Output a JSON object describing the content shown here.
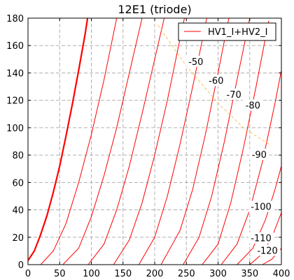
{
  "chart_data": {
    "type": "line",
    "title": "12E1 (triode)",
    "xlabel": "",
    "ylabel": "",
    "xlim": [
      0,
      400
    ],
    "ylim": [
      0,
      180
    ],
    "x_ticks": [
      0,
      50,
      100,
      150,
      200,
      250,
      300,
      350,
      400
    ],
    "y_ticks": [
      0,
      20,
      40,
      60,
      80,
      100,
      120,
      140,
      160,
      180
    ],
    "grid": true,
    "legend": {
      "position": "top-right",
      "entries": [
        "HV1_I+HV2_I"
      ]
    },
    "curve_color": "#ff0000",
    "load_line_color": "#f5c15a",
    "grid_color": "#b0b0b0",
    "series": [
      {
        "label": "",
        "bold": true,
        "points": [
          [
            0,
            3
          ],
          [
            10,
            10
          ],
          [
            20,
            22
          ],
          [
            30,
            36
          ],
          [
            40,
            53
          ],
          [
            50,
            72
          ],
          [
            60,
            94
          ],
          [
            70,
            117
          ],
          [
            80,
            142
          ],
          [
            90,
            168
          ],
          [
            94,
            180
          ]
        ]
      },
      {
        "label": "",
        "bold": false,
        "points": [
          [
            20,
            0
          ],
          [
            40,
            10
          ],
          [
            60,
            30
          ],
          [
            80,
            60
          ],
          [
            100,
            95
          ],
          [
            120,
            135
          ],
          [
            140,
            180
          ]
        ]
      },
      {
        "label": "",
        "bold": false,
        "points": [
          [
            55,
            0
          ],
          [
            80,
            12
          ],
          [
            100,
            35
          ],
          [
            120,
            65
          ],
          [
            140,
            100
          ],
          [
            160,
            140
          ],
          [
            180,
            180
          ]
        ]
      },
      {
        "label": "",
        "bold": false,
        "points": [
          [
            95,
            0
          ],
          [
            120,
            15
          ],
          [
            140,
            40
          ],
          [
            160,
            72
          ],
          [
            180,
            110
          ],
          [
            200,
            150
          ],
          [
            215,
            180
          ]
        ]
      },
      {
        "label": "",
        "bold": false,
        "points": [
          [
            135,
            0
          ],
          [
            160,
            18
          ],
          [
            180,
            45
          ],
          [
            200,
            80
          ],
          [
            220,
            120
          ],
          [
            240,
            165
          ],
          [
            247,
            180
          ]
        ]
      },
      {
        "label": "-50",
        "bold": false,
        "points": [
          [
            175,
            0
          ],
          [
            200,
            20
          ],
          [
            220,
            50
          ],
          [
            240,
            88
          ],
          [
            260,
            130
          ],
          [
            280,
            175
          ],
          [
            282,
            180
          ]
        ]
      },
      {
        "label": "-60",
        "bold": false,
        "points": [
          [
            210,
            0
          ],
          [
            240,
            25
          ],
          [
            260,
            55
          ],
          [
            280,
            95
          ],
          [
            300,
            140
          ],
          [
            317,
            180
          ]
        ]
      },
      {
        "label": "-70",
        "bold": false,
        "points": [
          [
            245,
            0
          ],
          [
            270,
            20
          ],
          [
            290,
            50
          ],
          [
            310,
            90
          ],
          [
            330,
            135
          ],
          [
            350,
            180
          ]
        ]
      },
      {
        "label": "-80",
        "bold": false,
        "points": [
          [
            275,
            0
          ],
          [
            300,
            15
          ],
          [
            320,
            45
          ],
          [
            340,
            85
          ],
          [
            360,
            130
          ],
          [
            380,
            178
          ]
        ]
      },
      {
        "label": "-90",
        "bold": false,
        "points": [
          [
            305,
            0
          ],
          [
            330,
            15
          ],
          [
            350,
            40
          ],
          [
            370,
            75
          ],
          [
            390,
            118
          ],
          [
            400,
            142
          ]
        ]
      },
      {
        "label": "-100",
        "bold": false,
        "points": [
          [
            330,
            0
          ],
          [
            355,
            12
          ],
          [
            375,
            33
          ],
          [
            390,
            55
          ],
          [
            400,
            72
          ]
        ]
      },
      {
        "label": "-110",
        "bold": false,
        "points": [
          [
            350,
            0
          ],
          [
            370,
            8
          ],
          [
            385,
            20
          ],
          [
            400,
            38
          ]
        ]
      },
      {
        "label": "-120",
        "bold": false,
        "points": [
          [
            370,
            0
          ],
          [
            385,
            4
          ],
          [
            400,
            12
          ]
        ]
      }
    ],
    "load_line": {
      "points": [
        [
          205,
          175
        ],
        [
          250,
          145
        ],
        [
          300,
          118
        ],
        [
          340,
          100
        ],
        [
          380,
          88
        ]
      ]
    },
    "curve_labels": [
      {
        "text": "-50",
        "x": 265,
        "y": 148
      },
      {
        "text": "-60",
        "x": 297,
        "y": 134
      },
      {
        "text": "-70",
        "x": 325,
        "y": 124
      },
      {
        "text": "-80",
        "x": 355,
        "y": 116
      },
      {
        "text": "-90",
        "x": 365,
        "y": 80
      },
      {
        "text": "-100",
        "x": 368,
        "y": 42
      },
      {
        "text": "-110",
        "x": 368,
        "y": 19
      },
      {
        "text": "-120",
        "x": 378,
        "y": 10
      }
    ]
  }
}
